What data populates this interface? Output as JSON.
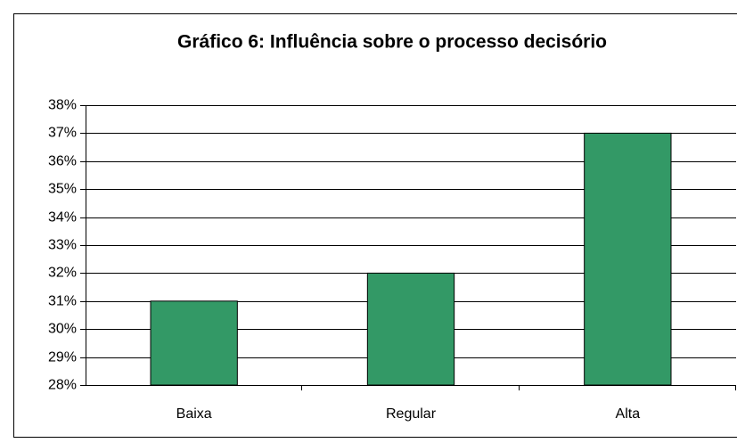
{
  "chart_data": {
    "type": "bar",
    "title": "Gráfico 6: Influência sobre o processo decisório",
    "categories": [
      "Baixa",
      "Regular",
      "Alta"
    ],
    "values": [
      31,
      32,
      37
    ],
    "color": "#339966",
    "ylim": [
      28,
      38
    ],
    "yticks": [
      {
        "value": 28,
        "label": "28%"
      },
      {
        "value": 29,
        "label": "29%"
      },
      {
        "value": 30,
        "label": "30%"
      },
      {
        "value": 31,
        "label": "31%"
      },
      {
        "value": 32,
        "label": "32%"
      },
      {
        "value": 33,
        "label": "33%"
      },
      {
        "value": 34,
        "label": "34%"
      },
      {
        "value": 35,
        "label": "35%"
      },
      {
        "value": 36,
        "label": "36%"
      },
      {
        "value": 37,
        "label": "37%"
      },
      {
        "value": 38,
        "label": "38%"
      }
    ],
    "grid": true
  }
}
